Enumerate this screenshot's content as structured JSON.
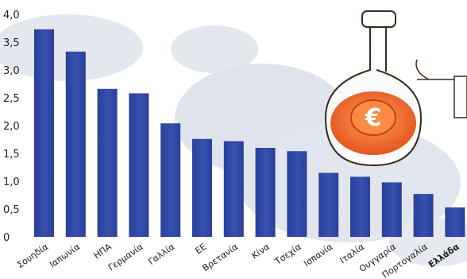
{
  "chart_data": {
    "type": "bar",
    "title": "",
    "xlabel": "",
    "ylabel": "",
    "ylim": [
      0,
      4.0
    ],
    "yticks": [
      "0",
      "0,5",
      "1,0",
      "1,5",
      "2,0",
      "2,5",
      "3,0",
      "3,5",
      "4,0"
    ],
    "categories": [
      "Σουηδία",
      "Ιαπωνία",
      "ΗΠΑ",
      "Γερμανία",
      "Γαλλία",
      "ΕΕ",
      "Βρετανία",
      "Κίνα",
      "Τσεχία",
      "Ισπανία",
      "Ιταλία",
      "Ουγγαρία",
      "Πορτογαλία",
      "Ελλάδα"
    ],
    "values": [
      3.73,
      3.33,
      2.66,
      2.58,
      2.04,
      1.76,
      1.72,
      1.6,
      1.54,
      1.15,
      1.08,
      0.98,
      0.77,
      0.53
    ],
    "highlight_category": "Ελλάδα",
    "grid": false,
    "colors": {
      "bar": "#2f49a6",
      "bar_light": "#4d68c2",
      "background_blob": "#dde3ec",
      "flask_liquid": "#f06a2a",
      "flask_outline": "#3a2a1a"
    },
    "illustration": "flask-with-euro-icon"
  }
}
